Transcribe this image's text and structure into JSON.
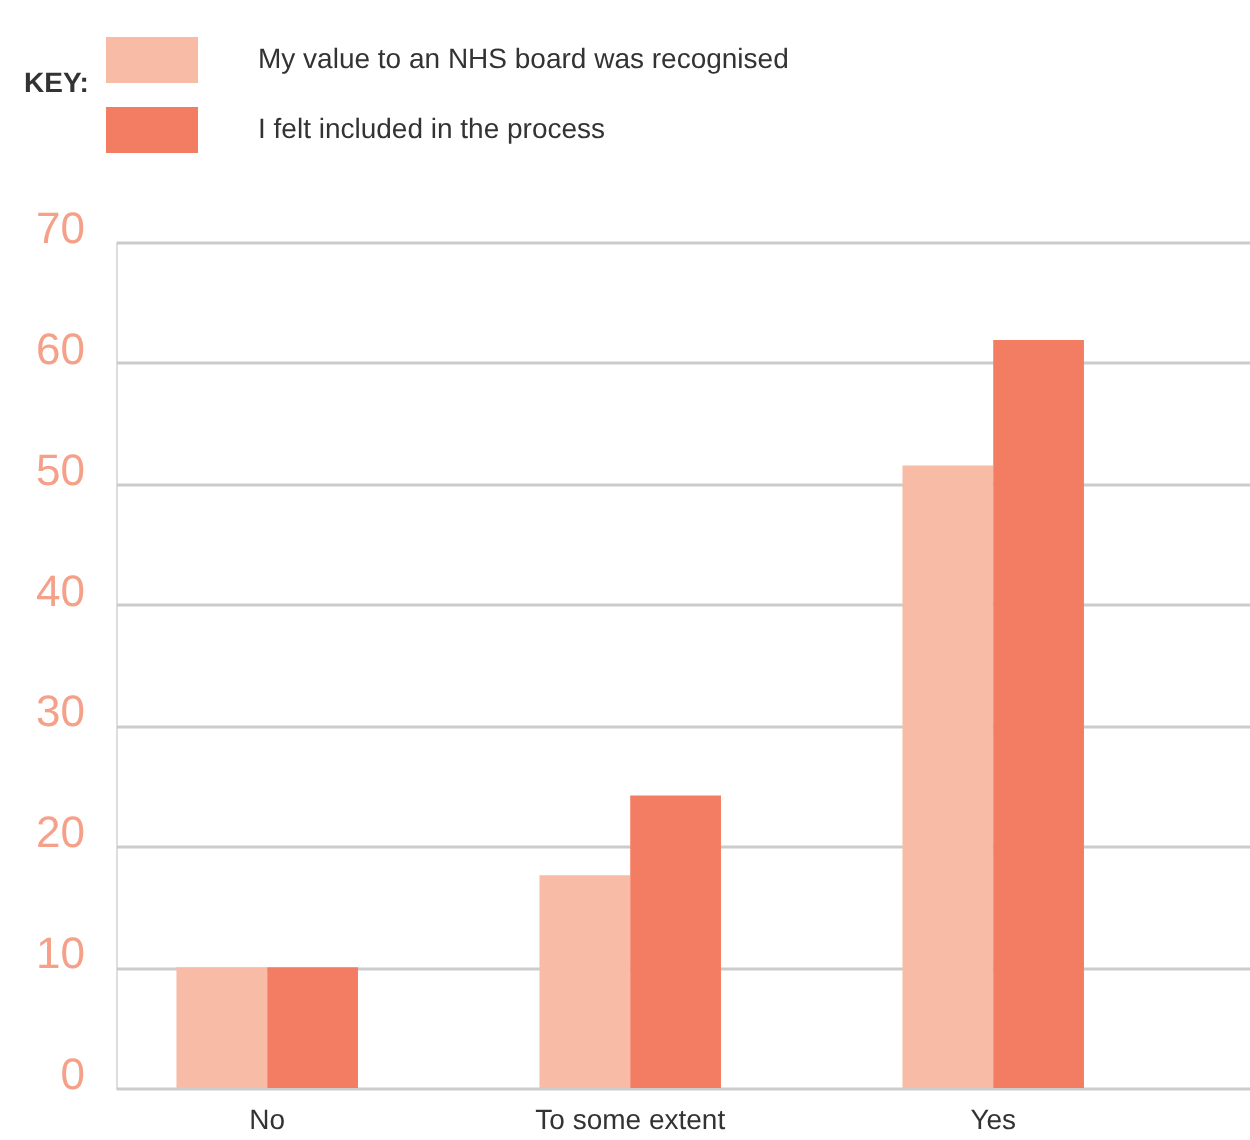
{
  "chart_data": {
    "type": "bar",
    "categories": [
      "No",
      "To some extent",
      "Yes"
    ],
    "series": [
      {
        "name": "My value to an NHS board was recognised",
        "color": "#f7bba6",
        "values": [
          10,
          17.6,
          51.5
        ]
      },
      {
        "name": "I felt included in the process",
        "color": "#f37d62",
        "values": [
          10,
          24.2,
          61.9
        ]
      }
    ],
    "legend_title": "KEY:",
    "legend": "top left",
    "ylim": [
      0,
      70
    ],
    "yticks": [
      0,
      10,
      20,
      30,
      40,
      50,
      60,
      70
    ],
    "grid": "y"
  }
}
